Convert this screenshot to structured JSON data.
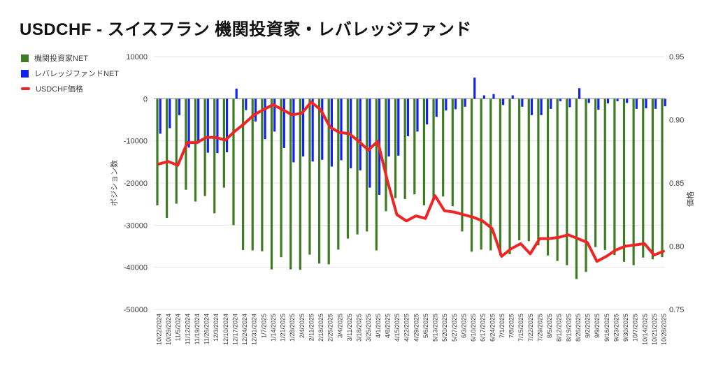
{
  "title": "USDCHF - スイスフラン 機関投資家・レバレッジファンド",
  "legend": {
    "items": [
      {
        "label": "機関投資家NET",
        "color": "#3e7c22",
        "swatch": "square"
      },
      {
        "label": "レバレッジファンドNET",
        "color": "#1123ef",
        "swatch": "square"
      },
      {
        "label": "USDCHF価格",
        "color": "#ee2524",
        "swatch": "line"
      }
    ]
  },
  "chart_data": {
    "type": "bar+line",
    "title": "USDCHF - スイスフラン 機関投資家・レバレッジファンド",
    "grid": "horizontal",
    "legend_position": "top-left",
    "categories": [
      "10/22/2024",
      "10/29/2024",
      "11/5/2024",
      "11/12/2024",
      "11/19/2024",
      "11/26/2024",
      "12/3/2024",
      "12/10/2024",
      "12/17/2024",
      "12/24/2024",
      "12/31/2024",
      "1/7/2025",
      "1/14/2025",
      "1/21/2025",
      "1/28/2025",
      "2/4/2025",
      "2/11/2025",
      "2/18/2025",
      "2/25/2025",
      "3/4/2025",
      "3/11/2025",
      "3/18/2025",
      "3/25/2025",
      "4/1/2025",
      "4/8/2025",
      "4/15/2025",
      "4/22/2025",
      "4/29/2025",
      "5/6/2025",
      "5/13/2025",
      "5/20/2025",
      "5/27/2025",
      "6/3/2025",
      "6/10/2025",
      "6/17/2025",
      "6/24/2025",
      "7/1/2025",
      "7/8/2025",
      "7/15/2025",
      "7/22/2025",
      "7/29/2025",
      "8/5/2025",
      "8/12/2025",
      "8/19/2025",
      "8/26/2025",
      "9/2/2025",
      "9/9/2025",
      "9/16/2025",
      "9/23/2025",
      "9/30/2025",
      "10/7/2025",
      "10/14/2025",
      "10/21/2025",
      "10/28/2025"
    ],
    "series": [
      {
        "name": "機関投資家NET",
        "type": "bar",
        "axis": "left",
        "color": "#3e7c22",
        "values": [
          -25300,
          -28300,
          -24900,
          -21600,
          -24400,
          -23100,
          -27200,
          -21100,
          -30000,
          -35900,
          -36000,
          -36200,
          -40500,
          -37600,
          -40500,
          -40600,
          -37000,
          -39100,
          -39300,
          -35800,
          -33200,
          -32200,
          -31500,
          -36000,
          -26700,
          -23600,
          -23800,
          -22700,
          -25300,
          -23800,
          -23200,
          -25500,
          -31500,
          -36300,
          -35800,
          -36000,
          -37200,
          -36900,
          -33600,
          -33800,
          -34800,
          -37200,
          -38500,
          -39500,
          -42800,
          -41100,
          -35200,
          -35900,
          -37100,
          -38700,
          -39500,
          -37700,
          -38100,
          -37600
        ]
      },
      {
        "name": "レバレッジファンドNET",
        "type": "bar",
        "axis": "left",
        "color": "#1123ef",
        "values": [
          -8300,
          -7000,
          -3900,
          -11600,
          -10600,
          -12800,
          -12900,
          -12700,
          2400,
          -2700,
          -5400,
          -9600,
          -7800,
          -11700,
          -15100,
          -13700,
          -14900,
          -14500,
          -16100,
          -14600,
          -16500,
          -17000,
          -21100,
          -22800,
          -13700,
          -13500,
          -8900,
          -7800,
          -6100,
          -4300,
          -2800,
          -2500,
          -1900,
          5000,
          800,
          1100,
          -1500,
          800,
          -1900,
          -3900,
          -3900,
          -2400,
          -600,
          -2000,
          2500,
          -1000,
          -2600,
          -1100,
          -600,
          -1000,
          -2400,
          -2300,
          -2400,
          -1800
        ]
      },
      {
        "name": "USDCHF価格",
        "type": "line",
        "axis": "right",
        "color": "#ee2524",
        "values": [
          0.865,
          0.867,
          0.864,
          0.882,
          0.882,
          0.886,
          0.886,
          0.884,
          0.891,
          0.897,
          0.904,
          0.908,
          0.912,
          0.908,
          0.904,
          0.905,
          0.914,
          0.908,
          0.894,
          0.89,
          0.889,
          0.883,
          0.876,
          0.883,
          0.852,
          0.825,
          0.82,
          0.824,
          0.822,
          0.84,
          0.828,
          0.827,
          0.825,
          0.823,
          0.82,
          0.814,
          0.792,
          0.798,
          0.802,
          0.794,
          0.806,
          0.806,
          0.807,
          0.809,
          0.806,
          0.803,
          0.788,
          0.792,
          0.797,
          0.8,
          0.801,
          0.802,
          0.793,
          0.796
        ]
      }
    ],
    "left_axis": {
      "title": "ポジション数",
      "max": 10000,
      "min": -50000,
      "ticks": [
        10000,
        0,
        -10000,
        -20000,
        -30000,
        -40000,
        -50000
      ]
    },
    "right_axis": {
      "title": "価格",
      "max": 0.95,
      "min": 0.75,
      "ticks": [
        0.95,
        0.9,
        0.85,
        0.8,
        0.75
      ]
    }
  }
}
